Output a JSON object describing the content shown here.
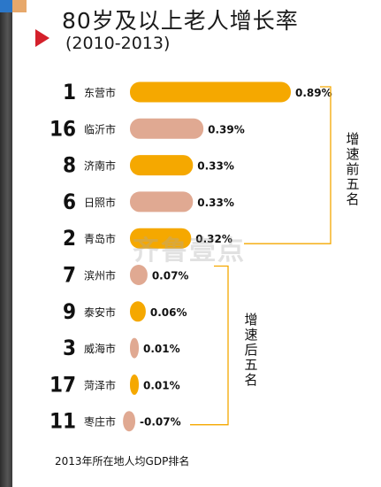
{
  "title": "80岁及以上老人增长率",
  "subtitle": "(2010-2013)",
  "footnote": "2013年所在地人均GDP排名",
  "watermark": "齐鲁壹点",
  "group_labels": {
    "top": "增速前五名",
    "bottom": "增速后五名"
  },
  "colors": {
    "top": "#f5a800",
    "bottom": "#e0a992",
    "bracket": "#f5a800"
  },
  "chart_data": {
    "type": "bar",
    "orientation": "horizontal",
    "title": "80岁及以上老人增长率",
    "subtitle": "(2010-2013)",
    "categories": [
      "东营市",
      "临沂市",
      "济南市",
      "日照市",
      "青岛市",
      "滨州市",
      "泰安市",
      "威海市",
      "菏泽市",
      "枣庄市"
    ],
    "ranks": [
      "1",
      "16",
      "8",
      "6",
      "2",
      "7",
      "9",
      "3",
      "17",
      "11"
    ],
    "values": [
      0.89,
      0.39,
      0.33,
      0.33,
      0.32,
      0.07,
      0.06,
      0.01,
      0.01,
      -0.07
    ],
    "value_labels": [
      "0.89%",
      "0.39%",
      "0.33%",
      "0.33%",
      "0.32%",
      "0.07%",
      "0.06%",
      "0.01%",
      "0.01%",
      "-0.07%"
    ],
    "bar_colors": [
      "#f5a800",
      "#e0a992",
      "#f5a800",
      "#e0a992",
      "#f5a800",
      "#e0a992",
      "#f5a800",
      "#e0a992",
      "#f5a800",
      "#e0a992"
    ],
    "xlim": [
      -0.07,
      0.89
    ]
  }
}
